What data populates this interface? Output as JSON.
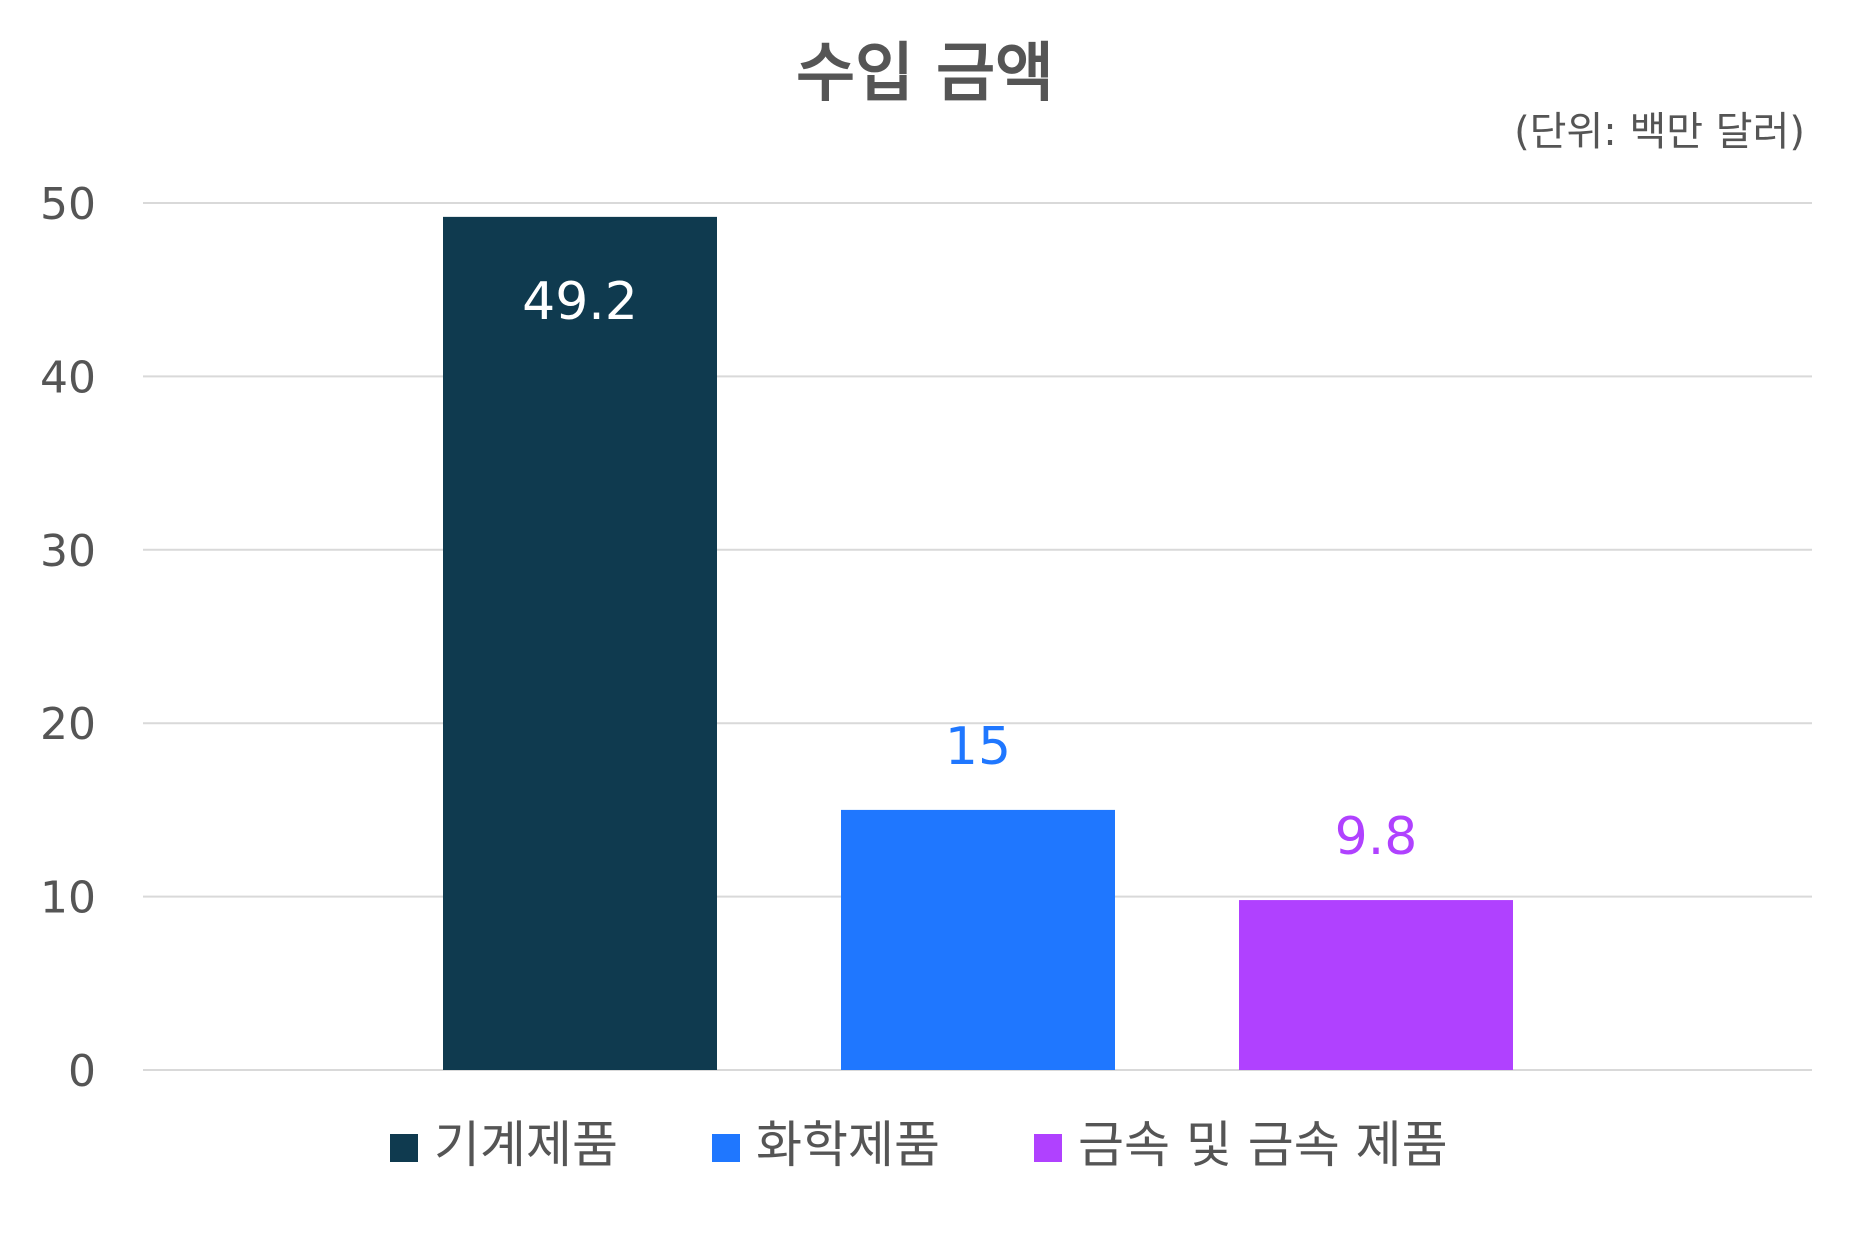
{
  "chart_data": {
    "type": "bar",
    "title": "수입 금액",
    "unit_note": "(단위: 백만 달러)",
    "categories": [
      "기계제품",
      "화학제품",
      "금속 및 금속 제품"
    ],
    "values": [
      49.2,
      15,
      9.8
    ],
    "colors": [
      "#0f3a4f",
      "#1f77ff",
      "#b041ff"
    ],
    "label_colors": [
      "#ffffff",
      "#1f77ff",
      "#b041ff"
    ],
    "data_labels": [
      "49.2",
      "15",
      "9.8"
    ],
    "ylim": [
      0,
      50
    ],
    "yticks": [
      0,
      10,
      20,
      30,
      40,
      50
    ],
    "grid": true,
    "legend_position": "bottom"
  }
}
